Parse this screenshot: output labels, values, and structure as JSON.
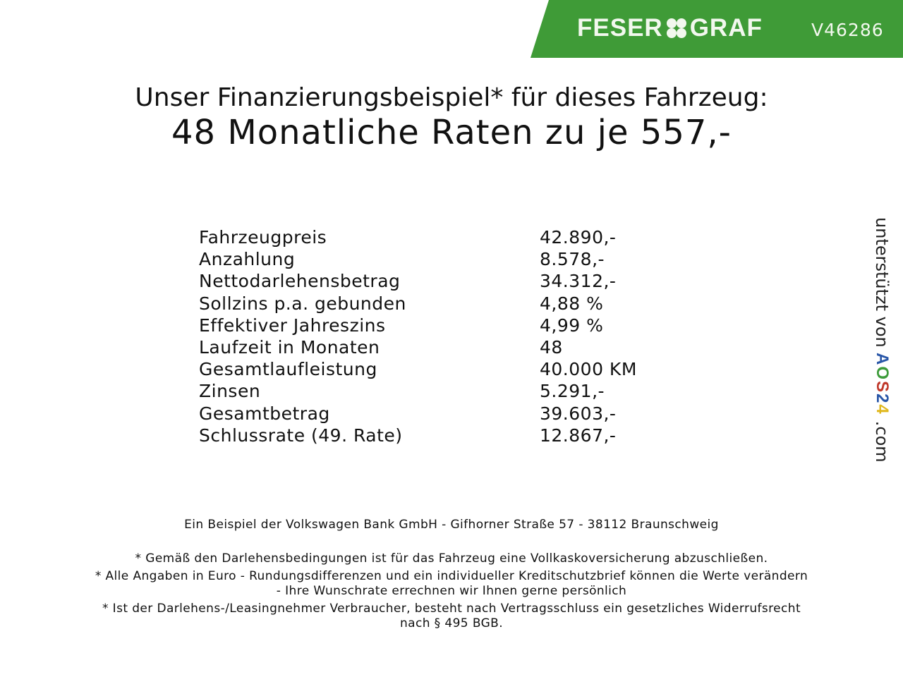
{
  "header": {
    "brand": "FESER",
    "brand2": "GRAF",
    "vehicle_code": "V46286",
    "accent": "#3f9b37"
  },
  "title": {
    "line1": "Unser Finanzierungsbeispiel* für dieses Fahrzeug:",
    "line2": "48 Monatliche Raten zu je 557,-"
  },
  "rows": [
    {
      "label": "Fahrzeugpreis",
      "value": "42.890,-"
    },
    {
      "label": "Anzahlung",
      "value": "8.578,-"
    },
    {
      "label": "Nettodarlehensbetrag",
      "value": "34.312,-"
    },
    {
      "label": "Sollzins p.a. gebunden",
      "value": "4,88 %"
    },
    {
      "label": "Effektiver Jahreszins",
      "value": "4,99 %"
    },
    {
      "label": "Laufzeit in Monaten",
      "value": "48"
    },
    {
      "label": "Gesamtlaufleistung",
      "value": "40.000 KM"
    },
    {
      "label": "Zinsen",
      "value": "5.291,-"
    },
    {
      "label": "Gesamtbetrag",
      "value": "39.603,-"
    },
    {
      "label": "Schlussrate (49. Rate)",
      "value": "12.867,-"
    }
  ],
  "side": {
    "prefix": "unterstützt von",
    "logo": "AOS24",
    "suffix": ".com"
  },
  "footer": {
    "bank": "Ein Beispiel der Volkswagen Bank GmbH - Gifhorner Straße 57 - 38112 Braunschweig",
    "note1": "* Gemäß den Darlehensbedingungen ist für das Fahrzeug eine Vollkaskoversicherung abzuschließen.",
    "note2a": "* Alle Angaben in Euro - Rundungsdifferenzen und ein individueller Kreditschutzbrief können die Werte verändern",
    "note2b": "- Ihre Wunschrate errechnen wir Ihnen gerne persönlich",
    "note3a": "* Ist der Darlehens-/Leasingnehmer Verbraucher, besteht nach Vertragsschluss ein gesetzliches Widerrufsrecht",
    "note3b": "nach § 495 BGB."
  }
}
